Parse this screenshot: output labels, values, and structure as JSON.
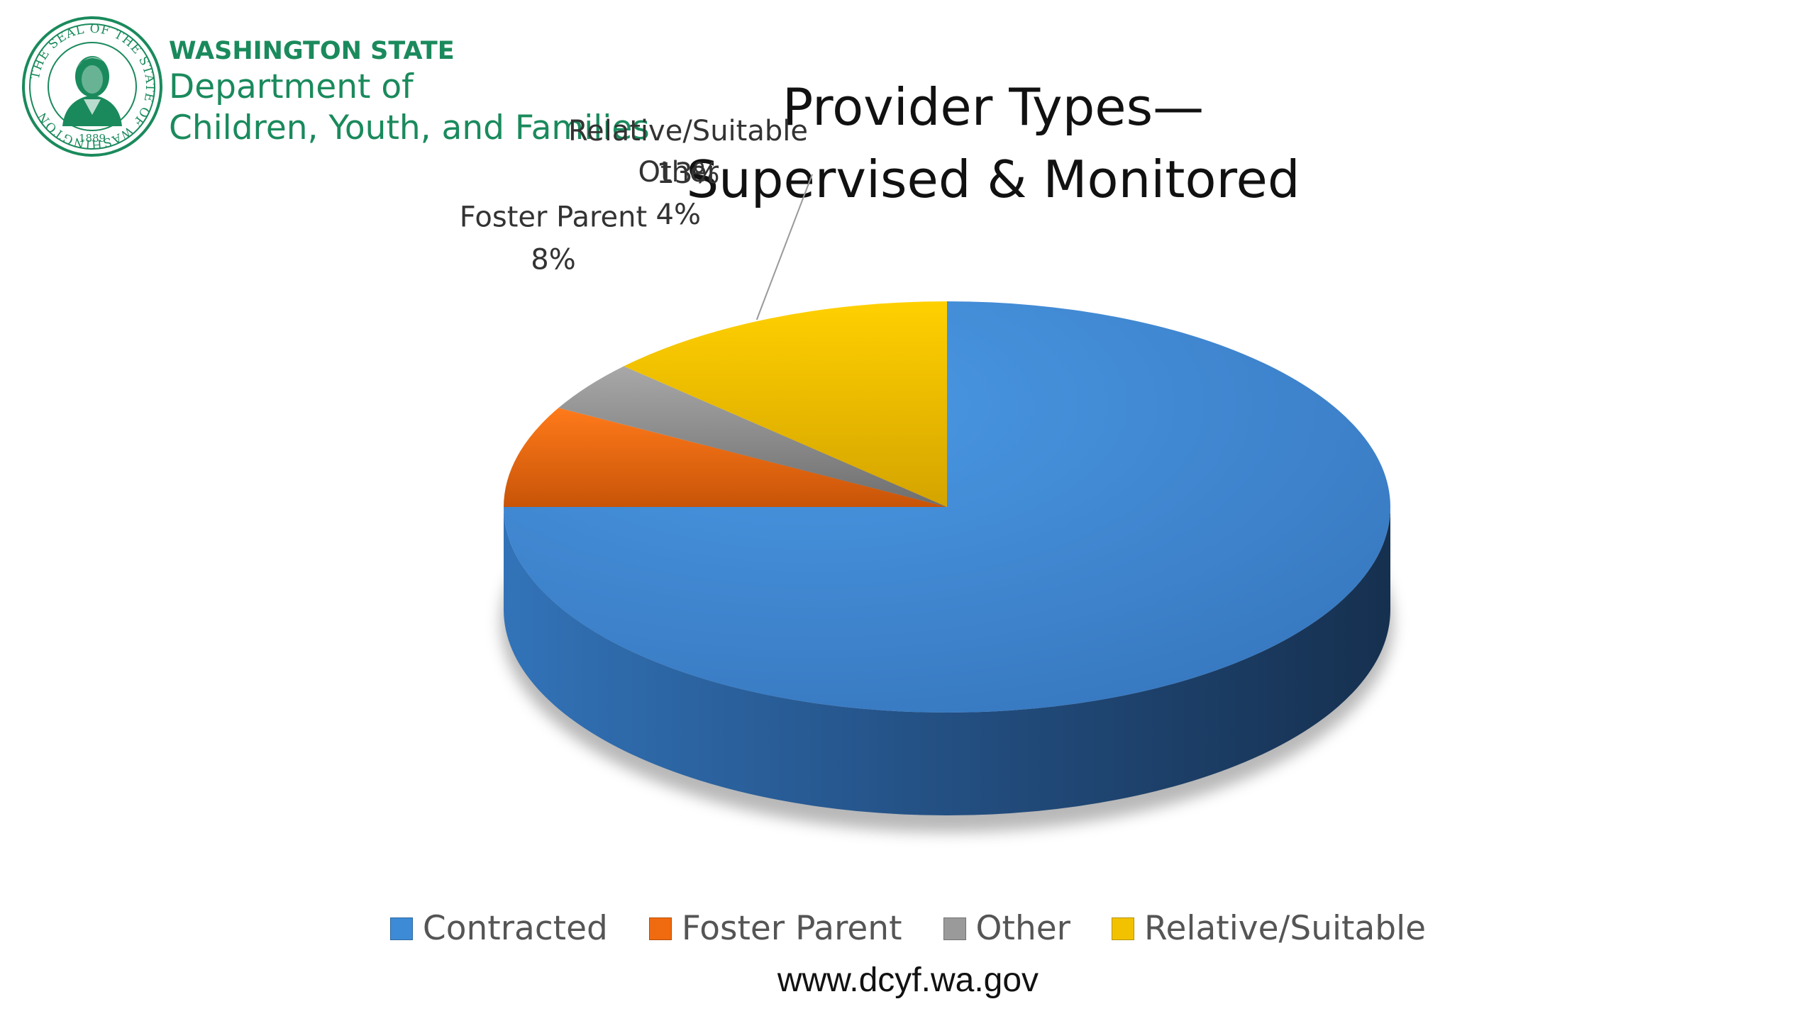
{
  "header": {
    "org_state": "WASHINGTON STATE",
    "org_line1": "Department of",
    "org_line2": "Children, Youth, and Families",
    "brand_color": "#1a8a5c"
  },
  "seal": {
    "ring_text": "THE SEAL OF THE STATE OF WASHINGTON",
    "year": "1889"
  },
  "footer": {
    "website": "www.dcyf.wa.gov"
  },
  "chart_data": {
    "type": "pie",
    "style": "3d",
    "title_line1": "Provider Types—",
    "title_line2": "Supervised & Monitored",
    "categories": [
      "Contracted",
      "Foster Parent",
      "Other",
      "Relative/Suitable"
    ],
    "values": [
      75,
      8,
      4,
      13
    ],
    "unit": "%",
    "data_labels": [
      {
        "category": "Contracted",
        "name": "",
        "value": ""
      },
      {
        "category": "Foster Parent",
        "name": "Foster Parent",
        "value": "8%"
      },
      {
        "category": "Other",
        "name": "Other",
        "value": "4%"
      },
      {
        "category": "Relative/Suitable",
        "name": "Relative/Suitable",
        "value": "13%"
      }
    ],
    "colors": [
      "#3d8bd6",
      "#f06a10",
      "#9a9a9a",
      "#f2c200"
    ],
    "legend_position": "bottom"
  }
}
